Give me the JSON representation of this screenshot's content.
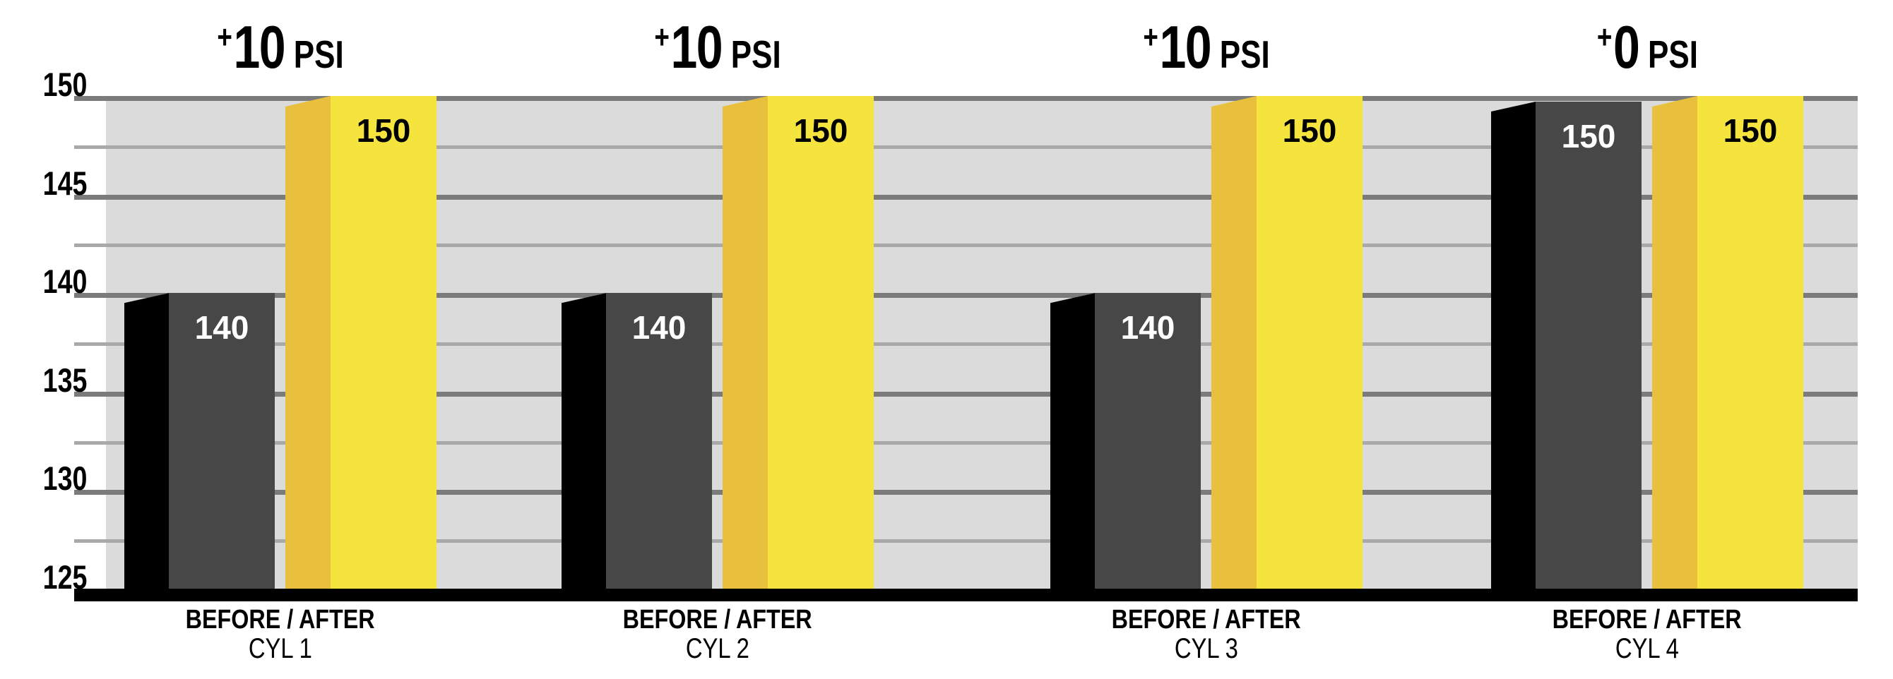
{
  "chart_data": {
    "type": "bar",
    "title": "",
    "categories": [
      "CYL 1",
      "CYL 2",
      "CYL 3",
      "CYL 4"
    ],
    "series": [
      {
        "name": "BEFORE",
        "color": "#474747",
        "side_color": "#000000",
        "values": [
          140,
          140,
          140,
          150
        ]
      },
      {
        "name": "AFTER",
        "color": "#f5e33e",
        "side_color": "#e9c03e",
        "values": [
          150,
          150,
          150,
          150
        ]
      }
    ],
    "group_deltas": [
      "+10 PSI",
      "+10 PSI",
      "+10 PSI",
      "+0 PSI"
    ],
    "unit": "PSI",
    "ylim": [
      125,
      150
    ],
    "yticks": [
      150,
      145,
      140,
      135,
      130,
      125
    ],
    "minor_tick_step": 2.5,
    "grid": "horizontal",
    "legend": "none",
    "plot_background": "#dbdbdb",
    "grid_major_color": "#7b7b7b",
    "grid_minor_color": "#a9a9a9",
    "axis_color": "#000000"
  },
  "y_axis": {
    "labels": [
      "150",
      "145",
      "140",
      "135",
      "130",
      "125"
    ]
  },
  "footer_label": "BEFORE / AFTER",
  "groups": [
    {
      "delta_plus": "+",
      "delta_value": "10",
      "delta_unit": "PSI",
      "before": "140",
      "after": "150",
      "line1": "BEFORE / AFTER",
      "line2": "CYL 1"
    },
    {
      "delta_plus": "+",
      "delta_value": "10",
      "delta_unit": "PSI",
      "before": "140",
      "after": "150",
      "line1": "BEFORE / AFTER",
      "line2": "CYL 2"
    },
    {
      "delta_plus": "+",
      "delta_value": "10",
      "delta_unit": "PSI",
      "before": "140",
      "after": "150",
      "line1": "BEFORE / AFTER",
      "line2": "CYL 3"
    },
    {
      "delta_plus": "+",
      "delta_value": "0",
      "delta_unit": "PSI",
      "before": "150",
      "after": "150",
      "line1": "BEFORE / AFTER",
      "line2": "CYL 4"
    }
  ],
  "colors": {
    "background": "#ffffff",
    "plot_bg": "#dbdbdb",
    "grid_major": "#7b7b7b",
    "grid_minor": "#a9a9a9",
    "axis": "#000000",
    "before_front": "#474747",
    "before_side": "#000000",
    "after_front": "#f5e33e",
    "after_side": "#e9c03e",
    "before_value_text": "#ffffff",
    "after_value_text": "#000000"
  }
}
